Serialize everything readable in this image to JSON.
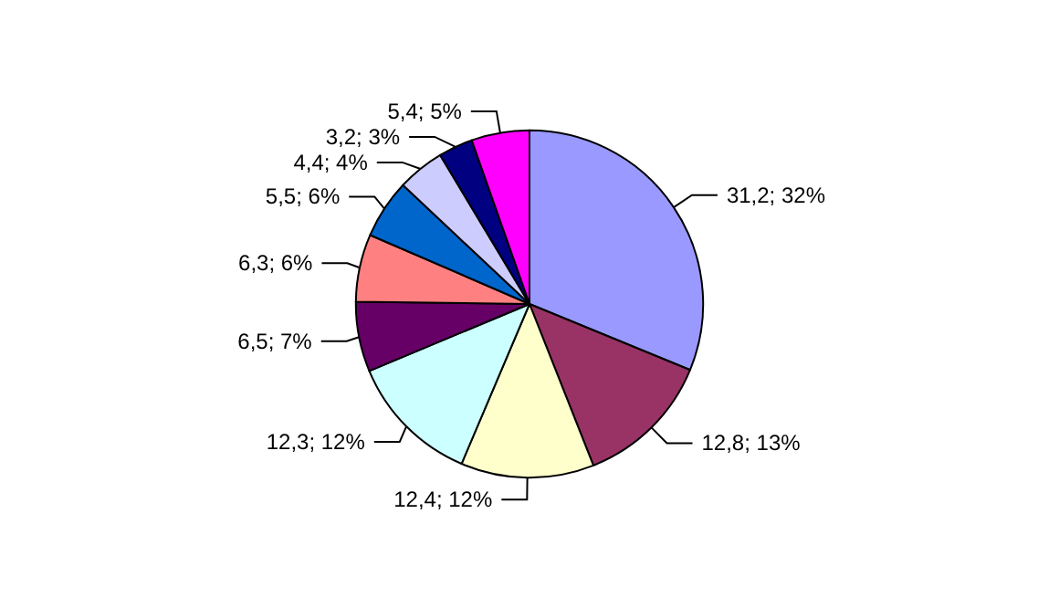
{
  "chart_data": {
    "type": "pie",
    "categories": [
      null,
      null,
      null,
      null,
      null,
      null,
      null,
      null,
      null,
      null
    ],
    "values": [
      31.2,
      12.8,
      12.4,
      12.3,
      6.5,
      6.3,
      5.5,
      4.4,
      3.2,
      5.4
    ],
    "colors": [
      "#9999ff",
      "#993366",
      "#ffffcc",
      "#ccffff",
      "#660066",
      "#ff8080",
      "#0066cc",
      "#ccccff",
      "#000080",
      "#ff00ff"
    ],
    "value_labels": [
      "31,2; 32%",
      "12,8; 13%",
      "12,4; 12%",
      "12,3; 12%",
      "6,5; 7%",
      "6,3; 6%",
      "5,5; 6%",
      "4,4; 4%",
      "3,2; 3%",
      "5,4; 5%"
    ]
  }
}
